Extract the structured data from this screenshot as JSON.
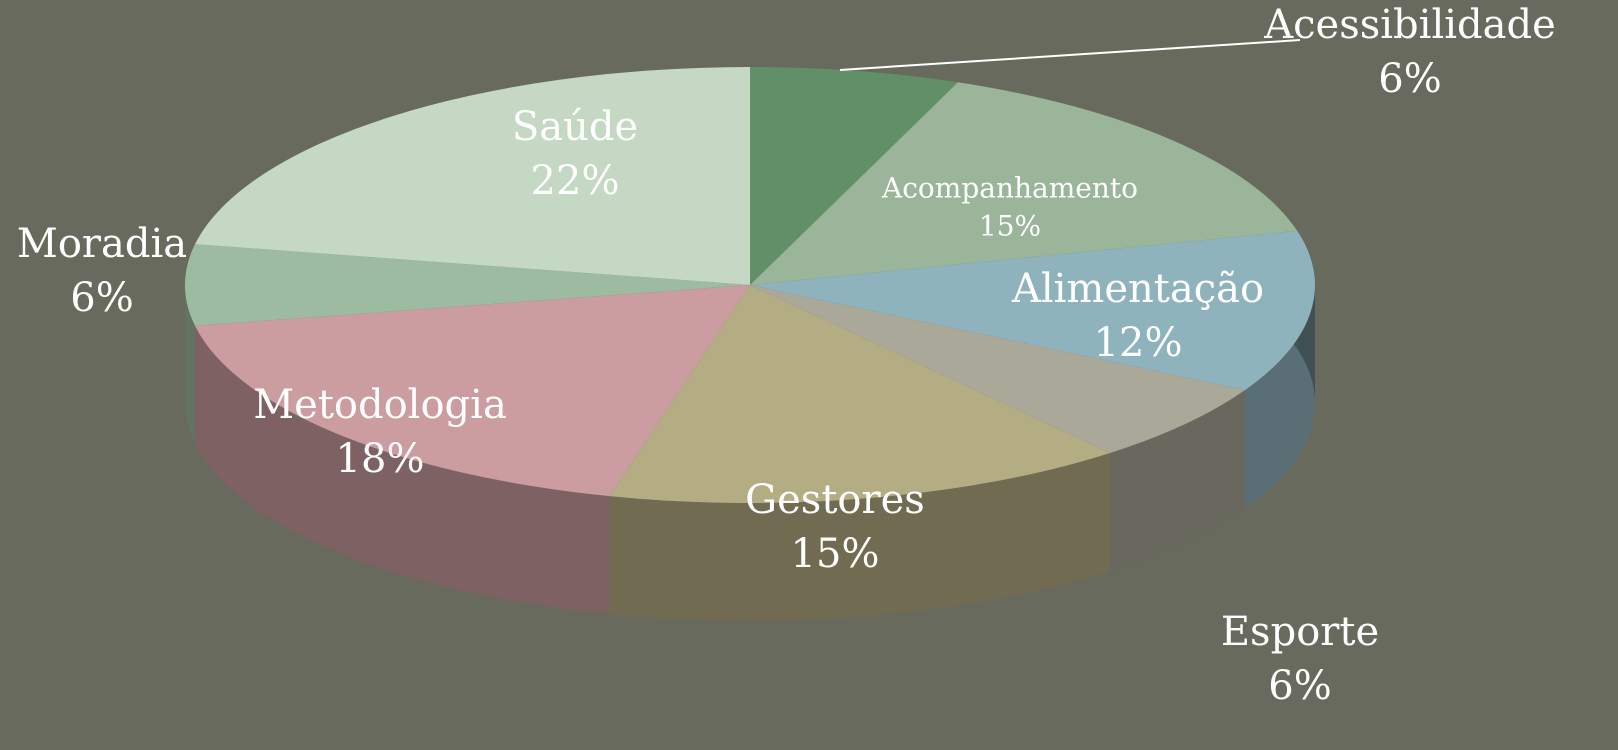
{
  "chart_data": {
    "type": "pie",
    "three_d": true,
    "categories": [
      "Acessibilidade",
      "Acompanhamento",
      "Alimentação",
      "Esporte",
      "Gestores",
      "Metodologia",
      "Moradia",
      "Saúde"
    ],
    "values": [
      6,
      15,
      12,
      6,
      15,
      18,
      6,
      22
    ],
    "value_labels": [
      "6%",
      "15%",
      "12%",
      "6%",
      "15%",
      "18%",
      "6%",
      "22%"
    ],
    "colors": [
      "#618f67",
      "#9bb59b",
      "#8fb3bc",
      "#a9a899",
      "#b4ad83",
      "#cb9ca0",
      "#9dbba1",
      "#c5d8c4"
    ]
  }
}
